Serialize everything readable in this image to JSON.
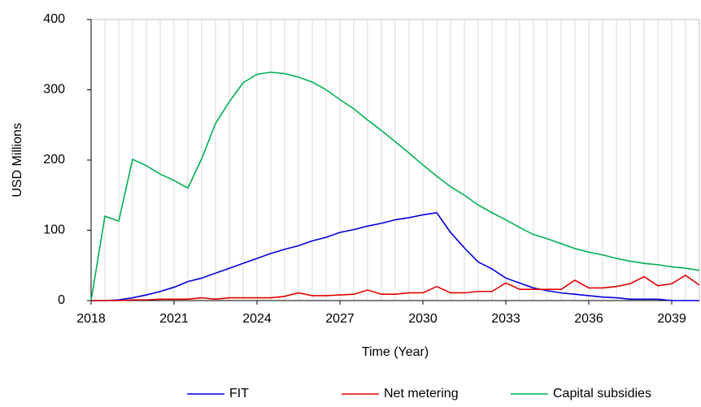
{
  "chart_data": {
    "type": "line",
    "x_label": "Time (Year)",
    "y_label": "USD Millions",
    "x": [
      2018,
      2018.5,
      2019,
      2019.5,
      2020,
      2020.5,
      2021,
      2021.5,
      2022,
      2022.5,
      2023,
      2023.5,
      2024,
      2024.5,
      2025,
      2025.5,
      2026,
      2026.5,
      2027,
      2027.5,
      2028,
      2028.5,
      2029,
      2029.5,
      2030,
      2030.5,
      2031,
      2031.5,
      2032,
      2032.5,
      2033,
      2033.5,
      2034,
      2034.5,
      2035,
      2035.5,
      2036,
      2036.5,
      2037,
      2037.5,
      2038,
      2038.5,
      2039,
      2039.5,
      2040
    ],
    "series": [
      {
        "name": "FIT",
        "color": "#0000dd",
        "values": [
          0,
          0,
          1,
          4,
          8,
          13,
          19,
          27,
          32,
          39,
          46,
          53,
          60,
          67,
          73,
          78,
          85,
          90,
          97,
          101,
          106,
          110,
          115,
          118,
          122,
          125,
          97,
          75,
          55,
          45,
          32,
          25,
          18,
          14,
          11,
          9,
          7,
          5,
          4,
          2,
          2,
          2,
          0,
          0,
          0
        ]
      },
      {
        "name": "Net metering",
        "color": "#e00000",
        "values": [
          0,
          0,
          0,
          1,
          1,
          2,
          2,
          2,
          4,
          2,
          4,
          4,
          4,
          4,
          6,
          11,
          7,
          7,
          8,
          9,
          15,
          9,
          9,
          11,
          11,
          20,
          11,
          11,
          13,
          13,
          25,
          16,
          16,
          16,
          16,
          29,
          18,
          18,
          20,
          24,
          34,
          21,
          24,
          36,
          22
        ]
      },
      {
        "name": "Capital subsidies",
        "color": "#00b050",
        "values": [
          0,
          120,
          113,
          201,
          192,
          180,
          171,
          160,
          202,
          252,
          283,
          310,
          322,
          325,
          323,
          318,
          311,
          300,
          286,
          273,
          257,
          242,
          226,
          210,
          193,
          177,
          162,
          150,
          136,
          125,
          115,
          104,
          94,
          88,
          81,
          74,
          69,
          65,
          60,
          56,
          53,
          51,
          48,
          46,
          43
        ]
      }
    ],
    "xlim": [
      2018,
      2040
    ],
    "xticks": [
      2018,
      2021,
      2024,
      2027,
      2030,
      2033,
      2036,
      2039
    ],
    "ylim": [
      0,
      400
    ],
    "yticks": [
      0,
      100,
      200,
      300,
      400
    ],
    "grid": true,
    "legend": "bottom"
  }
}
